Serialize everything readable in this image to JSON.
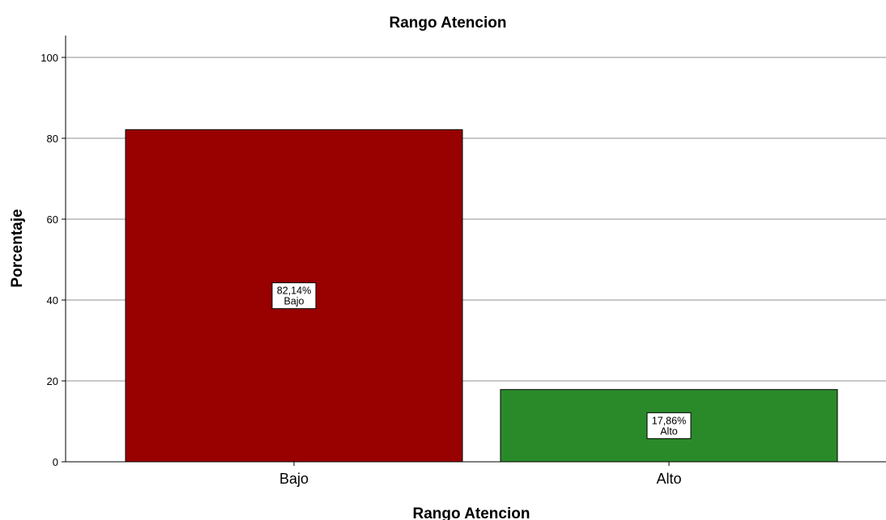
{
  "chart_data": {
    "type": "bar",
    "title": "Rango Atencion",
    "xlabel": "Rango Atencion",
    "ylabel": "Porcentaje",
    "categories": [
      "Bajo",
      "Alto"
    ],
    "values": [
      82.14,
      17.86
    ],
    "data_labels": [
      {
        "value": "82,14%",
        "category": "Bajo"
      },
      {
        "value": "17,86%",
        "category": "Alto"
      }
    ],
    "colors": [
      "#990000",
      "#2a8a2a"
    ],
    "ylim": [
      0,
      105
    ],
    "yticks": [
      0,
      20,
      40,
      60,
      80,
      100
    ],
    "grid": true,
    "legend": "none"
  }
}
